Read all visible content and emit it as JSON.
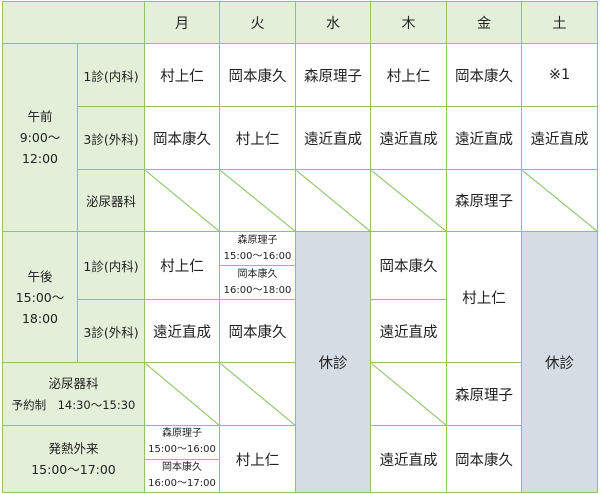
{
  "days": [
    "月",
    "火",
    "水",
    "木",
    "金",
    "土"
  ],
  "am": {
    "label": "午前",
    "time1": "9:00〜",
    "time2": "12:00",
    "row1": {
      "label": "1診(内科)",
      "cells": [
        "村上仁",
        "岡本康久",
        "森原理子",
        "村上仁",
        "岡本康久",
        "※1"
      ]
    },
    "row2": {
      "label": "3診(外科)",
      "cells": [
        "岡本康久",
        "村上仁",
        "遠近直成",
        "遠近直成",
        "遠近直成",
        "遠近直成"
      ]
    },
    "row3": {
      "label": "泌尿器科",
      "fri": "森原理子"
    }
  },
  "pm": {
    "label": "午後",
    "time1": "15:00〜",
    "time2": "18:00",
    "row1": {
      "label": "1診(内科)",
      "mon": "村上仁",
      "tue": [
        {
          "name": "森原理子",
          "time": "15:00〜16:00"
        },
        {
          "name": "岡本康久",
          "time": "16:00〜18:00"
        }
      ],
      "thu": "岡本康久",
      "fri": "村上仁"
    },
    "row2": {
      "label": "3診(外科)",
      "mon": "遠近直成",
      "tue": "岡本康久",
      "thu": "遠近直成"
    },
    "closed": "休診"
  },
  "uro": {
    "label": "泌尿器科",
    "note": "予約制　14:30〜15:30",
    "fri": "森原理子"
  },
  "fever": {
    "label": "発熱外来",
    "time": "15:00〜17:00",
    "mon": [
      {
        "name": "森原理子",
        "time": "15:00〜16:00"
      },
      {
        "name": "岡本康久",
        "time": "16:00〜17:00"
      }
    ],
    "tue": "村上仁",
    "thu": "遠近直成",
    "fri": "岡本康久"
  }
}
